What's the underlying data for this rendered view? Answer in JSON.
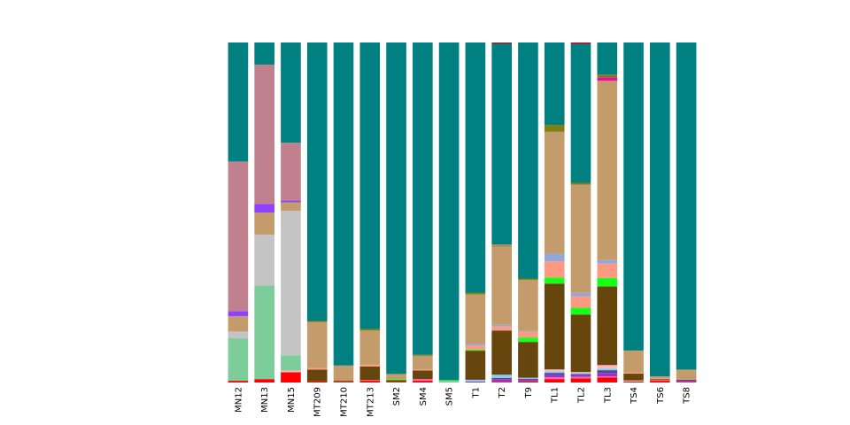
{
  "chart_data": {
    "type": "bar",
    "stacked": true,
    "normalized": true,
    "ylim": [
      0,
      100
    ],
    "grid": false,
    "legend": "none",
    "axes_visible": false,
    "categories": [
      "MN12",
      "MN13",
      "MN15",
      "MT209",
      "MT210",
      "MT213",
      "SM2",
      "SM4",
      "SM5",
      "T1",
      "T2",
      "T9",
      "TL1",
      "TL2",
      "TL3",
      "TS4",
      "TS6",
      "TS8"
    ],
    "series": [
      {
        "color": "#ff0000",
        "values": [
          0.5,
          1.0,
          3.0,
          0.3,
          0.2,
          0.5,
          0.2,
          0.5,
          0.0,
          0.0,
          0.2,
          0.3,
          1.0,
          1.2,
          1.5,
          0.3,
          0.5,
          0.2
        ]
      },
      {
        "color": "#ff69b4",
        "values": [
          0.0,
          0.0,
          0.0,
          0.0,
          0.0,
          0.2,
          0.0,
          0.5,
          0.0,
          0.0,
          0.0,
          0.0,
          0.5,
          0.5,
          0.3,
          0.0,
          0.2,
          0.0
        ]
      },
      {
        "color": "#9932cc",
        "values": [
          0.0,
          0.0,
          0.0,
          0.0,
          0.0,
          0.0,
          0.0,
          0.0,
          0.0,
          0.3,
          0.8,
          0.5,
          0.8,
          0.5,
          1.0,
          0.0,
          0.0,
          0.3
        ]
      },
      {
        "color": "#4b4b8f",
        "values": [
          0.0,
          0.0,
          0.0,
          0.0,
          0.0,
          0.0,
          0.0,
          0.0,
          0.0,
          0.0,
          0.3,
          0.3,
          0.5,
          0.3,
          0.8,
          0.0,
          0.0,
          0.3
        ]
      },
      {
        "color": "#87ceeb",
        "values": [
          0.0,
          0.0,
          0.0,
          0.0,
          0.0,
          0.0,
          0.0,
          0.0,
          0.0,
          0.5,
          1.0,
          0.3,
          0.5,
          0.3,
          0.5,
          0.0,
          0.0,
          0.0
        ]
      },
      {
        "color": "#ffb6c1",
        "values": [
          0.0,
          0.0,
          0.5,
          0.0,
          0.0,
          0.0,
          0.0,
          0.0,
          0.0,
          0.0,
          0.0,
          0.0,
          0.5,
          0.3,
          1.0,
          0.3,
          0.0,
          0.0
        ]
      },
      {
        "color": "#7ccd9a",
        "values": [
          12.5,
          27.5,
          4.5,
          0.0,
          0.0,
          0.0,
          0.0,
          0.0,
          0.5,
          0.0,
          0.0,
          0.0,
          0.0,
          0.0,
          0.0,
          0.0,
          0.0,
          0.0
        ]
      },
      {
        "color": "#66460c",
        "values": [
          0.0,
          0.0,
          0.0,
          3.5,
          0.3,
          4.0,
          0.5,
          2.5,
          0.0,
          8.5,
          13.0,
          10.5,
          25.0,
          17.0,
          23.0,
          2.0,
          0.3,
          0.0
        ]
      },
      {
        "color": "#16ff16",
        "values": [
          0.0,
          0.0,
          0.0,
          0.0,
          0.0,
          0.0,
          0.3,
          0.0,
          0.2,
          0.3,
          0.0,
          1.3,
          1.8,
          2.0,
          2.5,
          0.0,
          0.0,
          0.0
        ]
      },
      {
        "color": "#ff9980",
        "values": [
          0.0,
          0.0,
          0.0,
          0.5,
          0.0,
          0.5,
          0.0,
          0.3,
          0.0,
          1.2,
          1.2,
          1.7,
          4.7,
          3.4,
          4.2,
          0.3,
          0.3,
          0.0
        ]
      },
      {
        "color": "#8fa7d9",
        "values": [
          0.0,
          0.0,
          0.0,
          0.0,
          0.0,
          0.0,
          0.0,
          0.0,
          0.0,
          0.5,
          0.5,
          0.2,
          2.2,
          1.0,
          1.0,
          0.0,
          0.0,
          0.0
        ]
      },
      {
        "color": "#c4c4c4",
        "values": [
          2.0,
          15.0,
          42.5,
          0.0,
          0.0,
          0.0,
          0.0,
          0.0,
          0.0,
          0.0,
          0.0,
          0.0,
          0.0,
          0.0,
          0.0,
          0.0,
          0.0,
          0.0
        ]
      },
      {
        "color": "#c49c6c",
        "values": [
          4.5,
          6.5,
          2.5,
          13.5,
          4.5,
          10.0,
          1.5,
          4.0,
          0.0,
          14.5,
          23.0,
          15.0,
          35.5,
          32.0,
          52.5,
          6.5,
          0.5,
          3.0
        ]
      },
      {
        "color": "#8f41ff",
        "values": [
          1.5,
          2.5,
          0.5,
          0.0,
          0.0,
          0.0,
          0.0,
          0.0,
          0.0,
          0.0,
          0.0,
          0.0,
          0.0,
          0.0,
          0.0,
          0.0,
          0.0,
          0.0
        ]
      },
      {
        "color": "#ee0aa0",
        "values": [
          0.0,
          0.0,
          0.0,
          0.0,
          0.0,
          0.0,
          0.0,
          0.0,
          0.0,
          0.0,
          0.0,
          0.0,
          0.0,
          0.0,
          1.0,
          0.0,
          0.0,
          0.0
        ]
      },
      {
        "color": "#7f7f14",
        "values": [
          0.0,
          0.0,
          0.0,
          0.3,
          0.0,
          0.5,
          0.0,
          0.3,
          0.0,
          0.5,
          0.3,
          0.4,
          2.0,
          0.5,
          0.8,
          0.0,
          0.0,
          0.0
        ]
      },
      {
        "color": "#c0808e",
        "values": [
          44.0,
          41.0,
          17.0,
          0.0,
          0.0,
          0.0,
          0.0,
          0.0,
          0.0,
          0.0,
          0.3,
          0.0,
          0.0,
          0.0,
          0.0,
          0.0,
          0.0,
          0.0
        ]
      },
      {
        "color": "#008080",
        "values": [
          35.0,
          6.5,
          29.5,
          81.9,
          95.0,
          83.8,
          97.5,
          91.4,
          99.3,
          73.2,
          59.0,
          69.2,
          24.0,
          41.0,
          9.4,
          90.6,
          98.2,
          96.2
        ]
      },
      {
        "color": "#8b2030",
        "values": [
          0.0,
          0.0,
          0.0,
          0.0,
          0.0,
          0.0,
          0.0,
          0.0,
          0.0,
          0.0,
          0.4,
          0.0,
          0.0,
          0.5,
          0.0,
          0.0,
          0.0,
          0.0
        ]
      }
    ]
  }
}
